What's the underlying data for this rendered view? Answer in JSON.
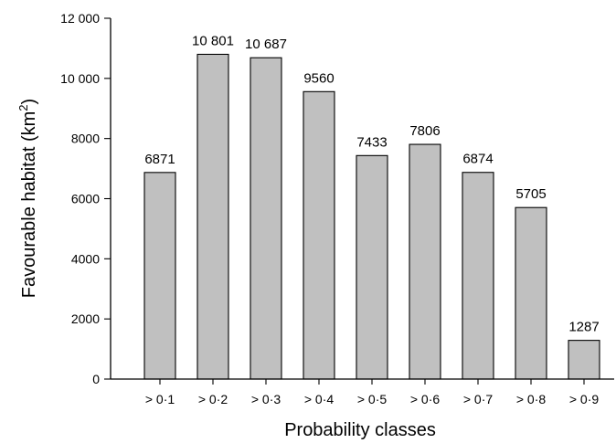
{
  "chart_data": {
    "type": "bar",
    "categories": [
      "> 0·1",
      "> 0·2",
      "> 0·3",
      "> 0·4",
      "> 0·5",
      "> 0·6",
      "> 0·7",
      "> 0·8",
      "> 0·9"
    ],
    "values": [
      6871,
      10801,
      10687,
      9560,
      7433,
      7806,
      6874,
      5705,
      1287
    ],
    "data_labels": [
      "6871",
      "10 801",
      "10 687",
      "9560",
      "7433",
      "7806",
      "6874",
      "5705",
      "1287"
    ],
    "xlabel": "Probability classes",
    "ylabel_main": "Favourable habitat (km",
    "ylabel_sup": "2",
    "ylabel_end": ")",
    "ylim": [
      0,
      12000
    ],
    "yticks": [
      0,
      2000,
      4000,
      6000,
      8000,
      10000,
      12000
    ],
    "ytick_labels": [
      "0",
      "2000",
      "4000",
      "6000",
      "8000",
      "10 000",
      "12 000"
    ],
    "grid": false,
    "bar_color": "#c0c0c0",
    "bar_edge_color": "#000000"
  }
}
